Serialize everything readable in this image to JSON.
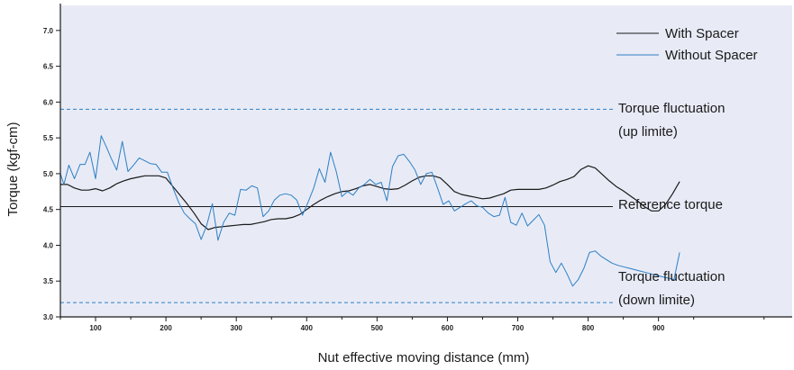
{
  "chart_data": {
    "type": "line",
    "title": "",
    "xlabel": "Nut effective moving distance (mm)",
    "ylabel": "Torque (kgf-cm)",
    "xlim": [
      50,
      1090
    ],
    "ylim": [
      3.0,
      7.35
    ],
    "x_ticks": [
      100,
      200,
      300,
      400,
      500,
      600,
      700,
      800,
      900
    ],
    "y_ticks": [
      3.0,
      3.5,
      4.0,
      4.5,
      5.0,
      5.5,
      6.0,
      6.5,
      7.0
    ],
    "x_tick_labels": [
      "100",
      "200",
      "300",
      "400",
      "500",
      "600",
      "700",
      "800",
      "900"
    ],
    "y_tick_labels": [
      "3.0",
      "3.5",
      "4.0",
      "4.5",
      "5.0",
      "5.5",
      "6.0",
      "6.5",
      "7.0"
    ],
    "grid": false,
    "legend_position": "top-right",
    "background_color": "#e8ebf6",
    "series": [
      {
        "name": "With Spacer",
        "color": "#1a1a1a",
        "x": [
          50,
          60,
          70,
          80,
          90,
          100,
          110,
          120,
          130,
          140,
          150,
          160,
          170,
          180,
          190,
          200,
          210,
          220,
          230,
          240,
          250,
          260,
          270,
          280,
          290,
          300,
          310,
          320,
          330,
          340,
          350,
          360,
          370,
          380,
          390,
          400,
          410,
          420,
          430,
          440,
          450,
          460,
          470,
          480,
          490,
          500,
          510,
          520,
          530,
          540,
          550,
          560,
          570,
          580,
          590,
          600,
          610,
          620,
          630,
          640,
          650,
          660,
          670,
          680,
          690,
          700,
          710,
          720,
          730,
          740,
          750,
          760,
          770,
          780,
          790,
          800,
          810,
          820,
          830,
          840,
          850,
          860,
          870,
          880,
          890,
          900,
          910,
          920,
          930
        ],
        "y": [
          4.85,
          4.85,
          4.8,
          4.77,
          4.77,
          4.79,
          4.76,
          4.8,
          4.86,
          4.9,
          4.93,
          4.95,
          4.97,
          4.97,
          4.97,
          4.94,
          4.82,
          4.7,
          4.58,
          4.45,
          4.3,
          4.22,
          4.25,
          4.26,
          4.27,
          4.28,
          4.29,
          4.29,
          4.31,
          4.33,
          4.36,
          4.37,
          4.37,
          4.39,
          4.43,
          4.5,
          4.57,
          4.63,
          4.68,
          4.72,
          4.75,
          4.76,
          4.79,
          4.83,
          4.85,
          4.82,
          4.79,
          4.78,
          4.79,
          4.84,
          4.9,
          4.95,
          4.97,
          4.97,
          4.94,
          4.85,
          4.75,
          4.71,
          4.69,
          4.67,
          4.65,
          4.66,
          4.69,
          4.72,
          4.77,
          4.78,
          4.78,
          4.78,
          4.78,
          4.8,
          4.84,
          4.89,
          4.92,
          4.96,
          5.06,
          5.11,
          5.08,
          4.99,
          4.9,
          4.82,
          4.76,
          4.69,
          4.62,
          4.54,
          4.48,
          4.48,
          4.57,
          4.72,
          4.89
        ]
      },
      {
        "name": "Without Spacer",
        "color": "#2d7fc4",
        "x": [
          50,
          55,
          62,
          70,
          78,
          85,
          92,
          100,
          108,
          115,
          122,
          130,
          138,
          146,
          154,
          162,
          170,
          178,
          186,
          194,
          202,
          210,
          218,
          226,
          234,
          242,
          250,
          258,
          266,
          274,
          282,
          290,
          298,
          306,
          314,
          322,
          330,
          338,
          346,
          354,
          362,
          370,
          378,
          386,
          394,
          402,
          410,
          418,
          426,
          434,
          442,
          450,
          458,
          466,
          474,
          482,
          490,
          498,
          506,
          514,
          522,
          530,
          538,
          546,
          554,
          562,
          570,
          578,
          586,
          594,
          602,
          610,
          618,
          626,
          634,
          642,
          650,
          658,
          666,
          674,
          682,
          690,
          698,
          706,
          714,
          722,
          730,
          738,
          746,
          754,
          762,
          770,
          778,
          786,
          794,
          802,
          810,
          818,
          826,
          834,
          842,
          850,
          858,
          866,
          874,
          882,
          890,
          898,
          906,
          914,
          922,
          930
        ],
        "y": [
          5.0,
          4.85,
          5.12,
          4.93,
          5.13,
          5.13,
          5.3,
          4.93,
          5.53,
          5.38,
          5.22,
          5.05,
          5.45,
          5.03,
          5.12,
          5.22,
          5.18,
          5.14,
          5.13,
          5.02,
          5.02,
          4.8,
          4.6,
          4.45,
          4.37,
          4.3,
          4.08,
          4.28,
          4.58,
          4.07,
          4.32,
          4.45,
          4.42,
          4.78,
          4.77,
          4.83,
          4.8,
          4.4,
          4.48,
          4.63,
          4.7,
          4.72,
          4.7,
          4.63,
          4.42,
          4.6,
          4.8,
          5.07,
          4.88,
          5.3,
          5.03,
          4.68,
          4.75,
          4.7,
          4.8,
          4.85,
          4.92,
          4.85,
          4.88,
          4.62,
          5.1,
          5.25,
          5.27,
          5.17,
          5.05,
          4.85,
          5.0,
          5.02,
          4.8,
          4.57,
          4.62,
          4.48,
          4.53,
          4.58,
          4.62,
          4.55,
          4.53,
          4.45,
          4.4,
          4.42,
          4.67,
          4.32,
          4.28,
          4.45,
          4.27,
          4.35,
          4.43,
          4.28,
          3.77,
          3.62,
          3.75,
          3.6,
          3.43,
          3.52,
          3.68,
          3.9,
          3.92,
          3.85,
          3.8,
          3.75,
          3.72,
          3.7,
          3.68,
          3.66,
          3.64,
          3.62,
          3.6,
          3.58,
          3.56,
          3.54,
          3.52,
          3.9
        ]
      }
    ],
    "reference_lines": [
      {
        "value": 5.9,
        "style": "dashed",
        "color": "#2d7fc4",
        "label_lines": [
          "Torque fluctuation",
          "(up limite)"
        ]
      },
      {
        "value": 4.54,
        "style": "solid",
        "color": "#1a1a1a",
        "label_lines": [
          "Reference torque"
        ]
      },
      {
        "value": 3.2,
        "style": "dashed",
        "color": "#2d7fc4",
        "label_lines": [
          "Torque fluctuation",
          "(down limite)"
        ]
      }
    ]
  }
}
